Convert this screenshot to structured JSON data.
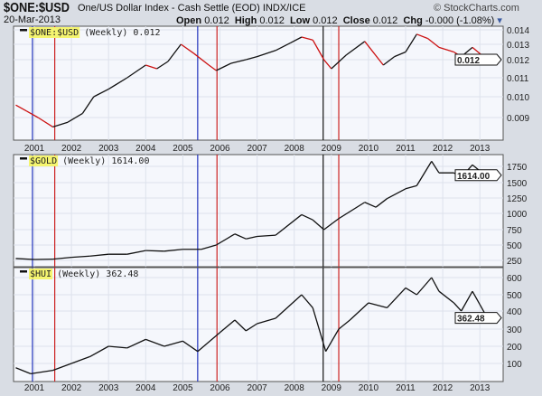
{
  "header": {
    "symbol": "$ONE:$USD",
    "description": "One/US Dollar Index - Cash Settle (EOD)",
    "exchange": "INDX/ICE",
    "brand": "© StockCharts.com",
    "date": "20-Mar-2013",
    "open_label": "Open",
    "open": "0.012",
    "high_label": "High",
    "high": "0.012",
    "low_label": "Low",
    "low": "0.012",
    "close_label": "Close",
    "close": "0.012",
    "chg_label": "Chg",
    "chg": "-0.000 (-1.08%)"
  },
  "chart_data": [
    {
      "type": "line",
      "title": "$ONE:$USD (Weekly) 0.012",
      "legend_symbol": "$ONE:$USD",
      "legend_rest": "(Weekly) 0.012",
      "last_label": "0.012",
      "yticks": [
        "0.014",
        "0.013",
        "0.012",
        "0.011",
        "0.010",
        "0.009"
      ],
      "x": [
        2000.5,
        2000.8,
        2001.1,
        2001.5,
        2001.9,
        2002.3,
        2002.6,
        2003.0,
        2003.5,
        2004.0,
        2004.3,
        2004.6,
        2004.95,
        2005.3,
        2005.7,
        2005.9,
        2006.3,
        2006.7,
        2007.0,
        2007.5,
        2007.9,
        2008.2,
        2008.5,
        2008.8,
        2009.0,
        2009.4,
        2009.9,
        2010.4,
        2010.7,
        2011.0,
        2011.3,
        2011.6,
        2011.9,
        2012.3,
        2012.5,
        2012.8,
        2013.0,
        2013.2
      ],
      "values": [
        0.0096,
        0.0093,
        0.009,
        0.0086,
        0.0088,
        0.0092,
        0.01,
        0.0104,
        0.011,
        0.0117,
        0.0115,
        0.0119,
        0.013,
        0.0124,
        0.0117,
        0.0114,
        0.0118,
        0.012,
        0.0122,
        0.0126,
        0.0131,
        0.0135,
        0.0133,
        0.012,
        0.0115,
        0.0123,
        0.0132,
        0.0117,
        0.0122,
        0.0125,
        0.0137,
        0.0134,
        0.0128,
        0.0125,
        0.0122,
        0.0128,
        0.0124,
        0.012
      ]
    },
    {
      "type": "line",
      "title": "$GOLD (Weekly) 1614.00",
      "legend_symbol": "$GOLD",
      "legend_rest": "(Weekly) 1614.00",
      "last_label": "1614.00",
      "yticks": [
        "1750",
        "1500",
        "1250",
        "1000",
        "750",
        "500",
        "250"
      ],
      "x": [
        2000.5,
        2001.0,
        2001.5,
        2002.0,
        2002.5,
        2003.0,
        2003.5,
        2004.0,
        2004.5,
        2005.0,
        2005.5,
        2005.9,
        2006.4,
        2006.7,
        2007.0,
        2007.5,
        2008.2,
        2008.5,
        2008.8,
        2009.2,
        2009.9,
        2010.2,
        2010.5,
        2011.0,
        2011.3,
        2011.7,
        2011.9,
        2012.3,
        2012.5,
        2012.8,
        2013.0,
        2013.2
      ],
      "values": [
        280,
        265,
        270,
        300,
        320,
        350,
        350,
        410,
        400,
        430,
        430,
        500,
        680,
        600,
        640,
        660,
        980,
        900,
        750,
        920,
        1180,
        1100,
        1240,
        1400,
        1450,
        1850,
        1650,
        1650,
        1580,
        1780,
        1680,
        1614
      ]
    },
    {
      "type": "line",
      "title": "$HUI (Weekly) 362.48",
      "legend_symbol": "$HUI",
      "legend_rest": "(Weekly) 362.48",
      "last_label": "362.48",
      "yticks": [
        "600",
        "500",
        "400",
        "300",
        "200",
        "100"
      ],
      "x": [
        2000.5,
        2000.9,
        2001.5,
        2002.0,
        2002.5,
        2003.0,
        2003.5,
        2004.0,
        2004.5,
        2005.0,
        2005.4,
        2006.0,
        2006.4,
        2006.7,
        2007.0,
        2007.5,
        2008.2,
        2008.5,
        2008.85,
        2009.2,
        2009.5,
        2010.0,
        2010.5,
        2011.0,
        2011.3,
        2011.7,
        2011.9,
        2012.3,
        2012.5,
        2012.8,
        2013.0,
        2013.2
      ],
      "values": [
        75,
        40,
        60,
        100,
        140,
        200,
        190,
        240,
        200,
        230,
        170,
        280,
        350,
        290,
        330,
        360,
        500,
        420,
        170,
        300,
        350,
        450,
        420,
        540,
        500,
        600,
        520,
        450,
        400,
        520,
        440,
        362
      ]
    }
  ],
  "x_ticks": [
    "2001",
    "2002",
    "2003",
    "2004",
    "2005",
    "2006",
    "2007",
    "2008",
    "2009",
    "2010",
    "2011",
    "2012",
    "2013"
  ],
  "markers": [
    {
      "x": 2000.95,
      "color": "#2233bb"
    },
    {
      "x": 2001.55,
      "color": "#cc2222"
    },
    {
      "x": 2005.4,
      "color": "#2233bb"
    },
    {
      "x": 2005.92,
      "color": "#cc2222"
    },
    {
      "x": 2008.78,
      "color": "#111111"
    },
    {
      "x": 2009.2,
      "color": "#cc2222"
    }
  ]
}
